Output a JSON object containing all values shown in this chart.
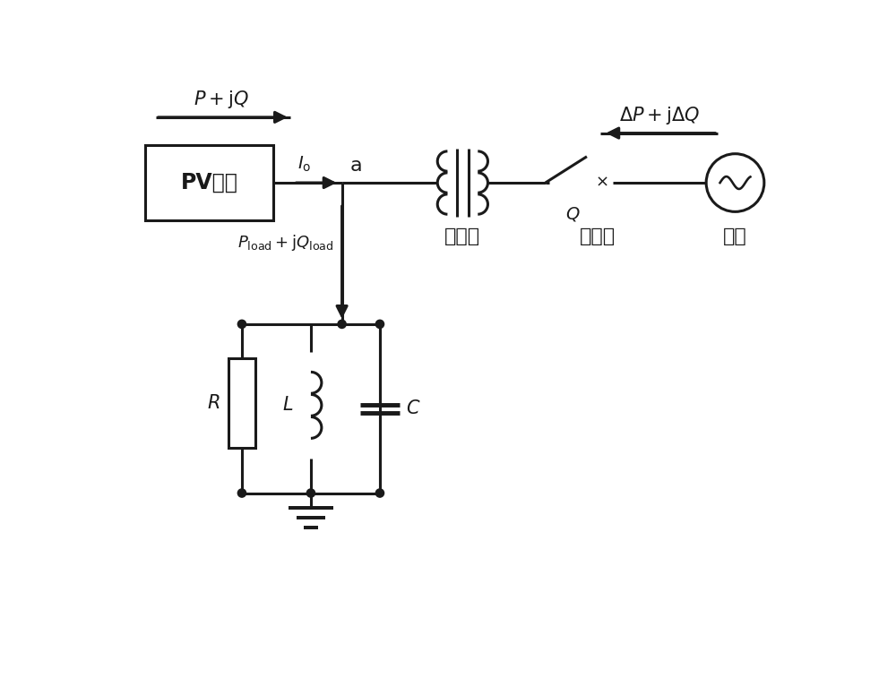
{
  "bg_color": "#ffffff",
  "line_color": "#1a1a1a",
  "lw": 2.2,
  "figsize": [
    10.0,
    7.57
  ],
  "dpi": 100,
  "xlim": [
    0,
    10
  ],
  "ylim": [
    0,
    7.57
  ]
}
